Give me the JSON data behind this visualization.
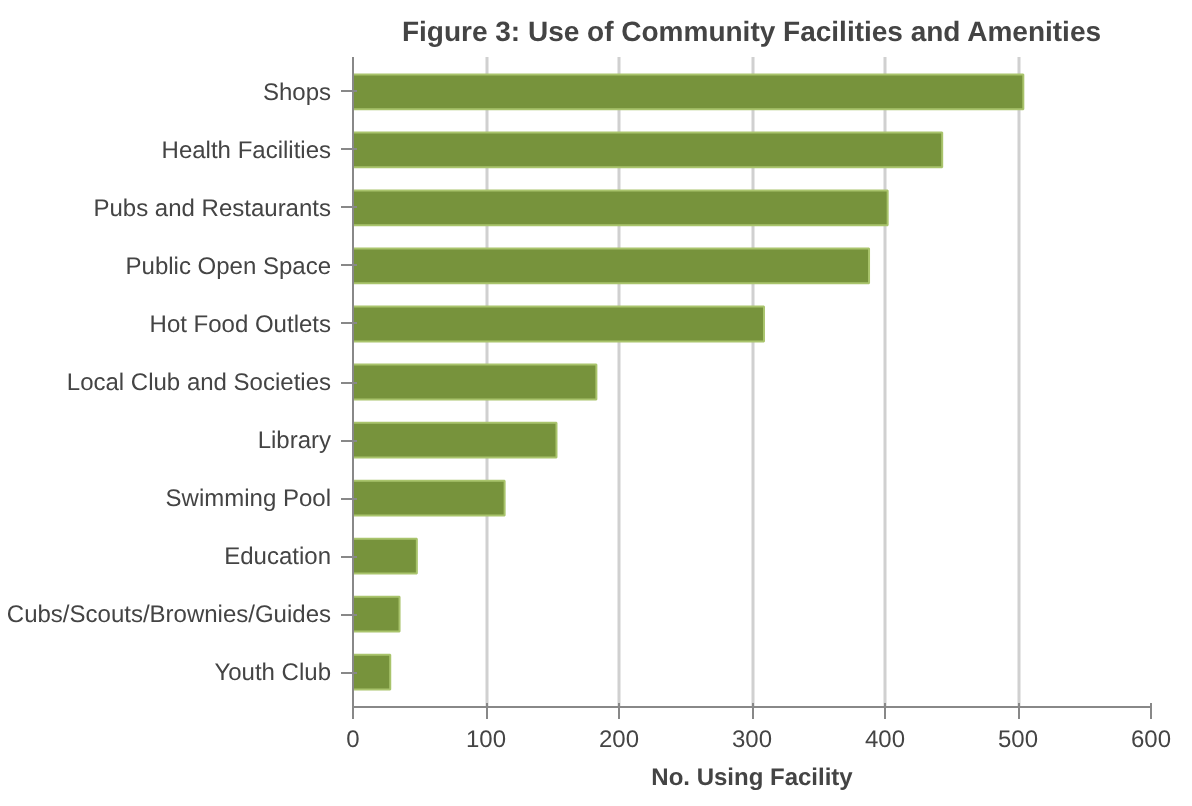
{
  "chart_data": {
    "type": "bar",
    "orientation": "horizontal",
    "title": "Figure 3: Use of Community Facilities and Amenities",
    "xlabel": "No. Using Facility",
    "categories": [
      "Shops",
      "Health Facilities",
      "Pubs and Restaurants",
      "Public Open Space",
      "Hot Food Outlets",
      "Local Club and Societies",
      "Library",
      "Swimming Pool",
      "Education",
      "Cubs/Scouts/Brownies/Guides",
      "Youth Club"
    ],
    "values": [
      504,
      443,
      402,
      388,
      309,
      183,
      153,
      114,
      48,
      35,
      28
    ],
    "color": "#77933c",
    "xlim": [
      0,
      600
    ],
    "xticks": [
      0,
      100,
      200,
      300,
      400,
      500,
      600
    ],
    "grid": "x"
  }
}
